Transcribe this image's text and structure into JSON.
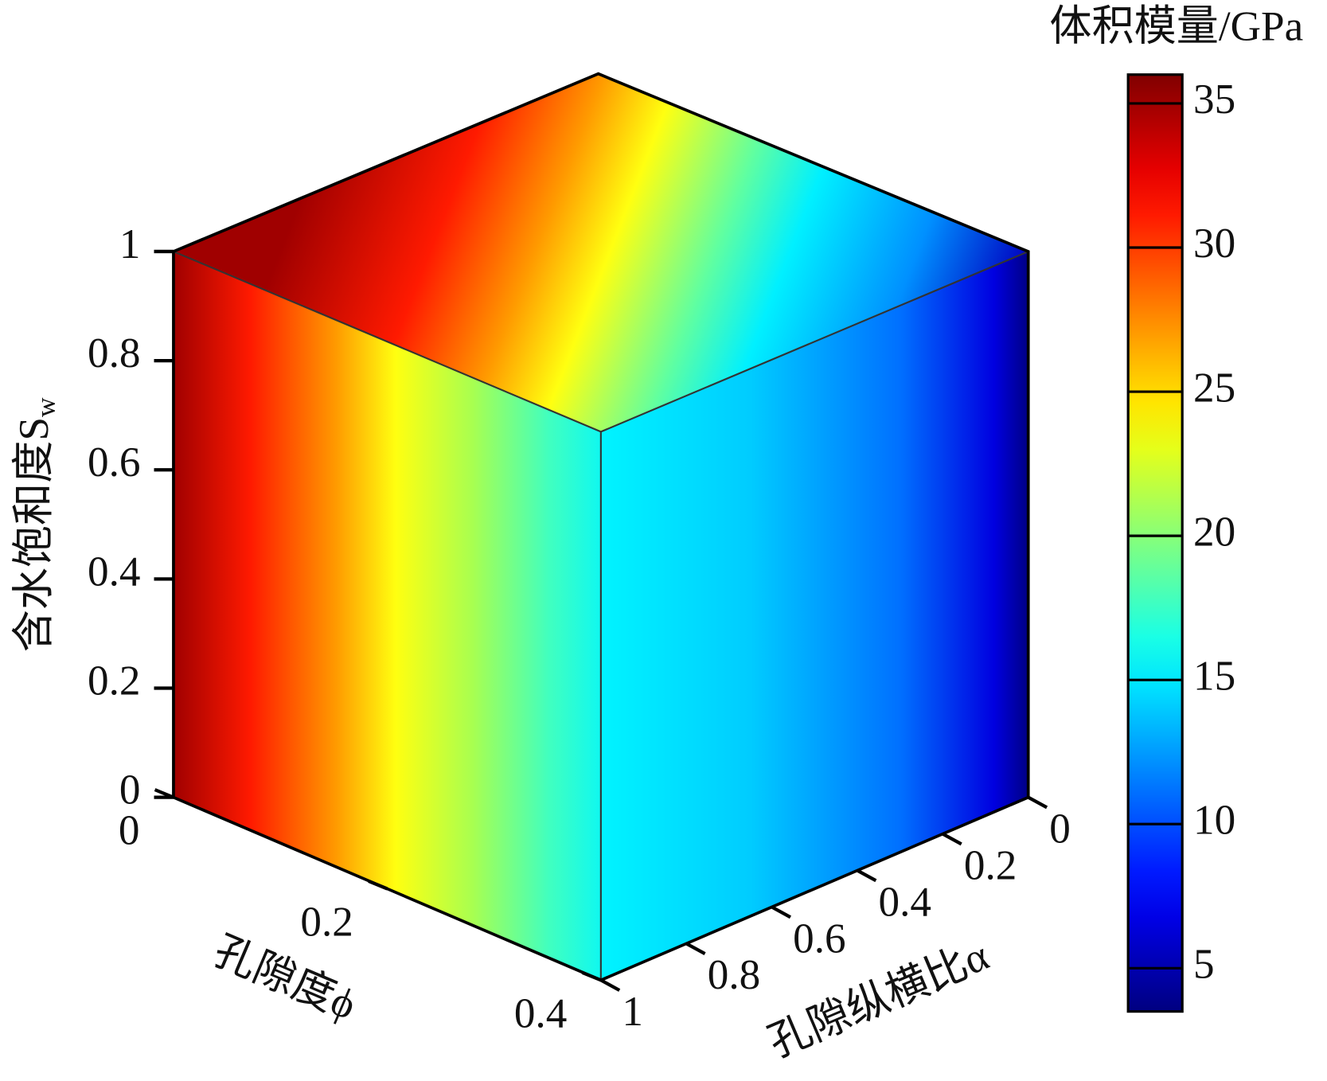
{
  "chart_data": {
    "type": "cube",
    "title": "体积模量/GPa",
    "colormap": "jet",
    "clim": [
      3.5,
      36
    ],
    "cticks": [
      5,
      10,
      15,
      20,
      25,
      30,
      35
    ],
    "xlabel": "孔隙度ϕ",
    "xlim": [
      0,
      0.4
    ],
    "xticks": [
      0,
      0.2,
      0.4
    ],
    "ylabel": "孔隙纵横比α",
    "ylim": [
      0,
      1
    ],
    "yticks": [
      0,
      0.2,
      0.4,
      0.6,
      0.8,
      1
    ],
    "zlabel": "含水饱和度S",
    "zlabel_sub": "w",
    "zlim": [
      0,
      1
    ],
    "zticks": [
      0,
      0.2,
      0.4,
      0.6,
      0.8,
      1
    ]
  }
}
